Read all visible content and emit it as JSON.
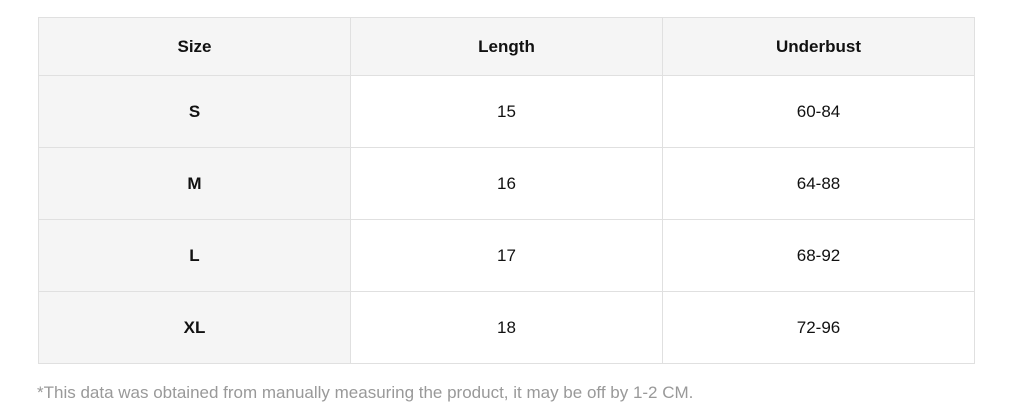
{
  "table": {
    "headers": [
      "Size",
      "Length",
      "Underbust"
    ],
    "rows": [
      {
        "size": "S",
        "length": "15",
        "underbust": "60-84"
      },
      {
        "size": "M",
        "length": "16",
        "underbust": "64-88"
      },
      {
        "size": "L",
        "length": "17",
        "underbust": "68-92"
      },
      {
        "size": "XL",
        "length": "18",
        "underbust": "72-96"
      }
    ]
  },
  "footnote": "*This data was obtained from manually measuring the product, it may be off by 1-2 CM.",
  "colors": {
    "header_bg": "#f5f5f5",
    "size_column_bg": "#f5f5f5",
    "cell_bg": "#ffffff",
    "border": "#e0e0e0",
    "cell_text": "#111111",
    "footnote_text": "#999999"
  }
}
